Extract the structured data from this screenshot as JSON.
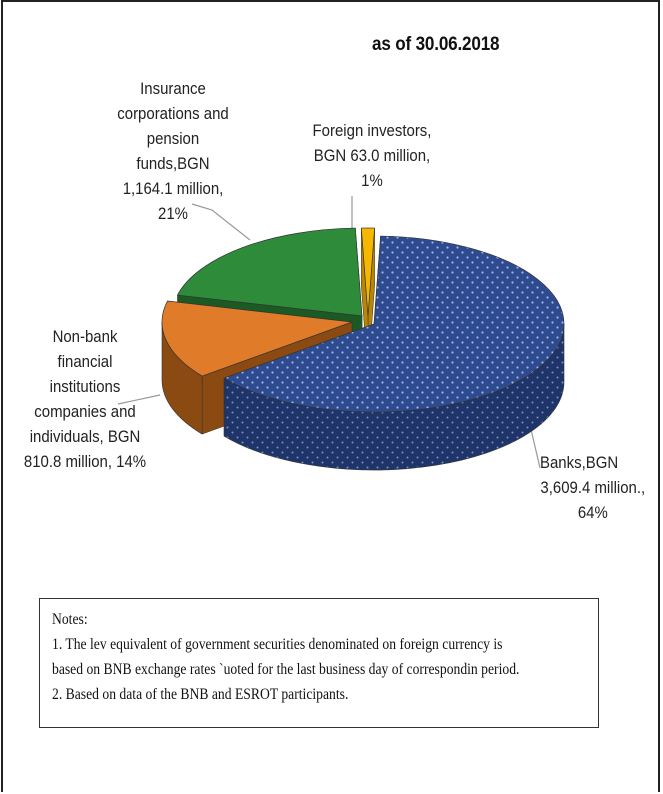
{
  "chart_data": {
    "type": "pie",
    "title": "as of 30.06.2018",
    "slices": [
      {
        "label": "Banks,BGN 3,609.4 million., 64%",
        "value": 3609.4,
        "percent": 64,
        "color": "#2f4b8f"
      },
      {
        "label": "Non-bank financial institutions companies and individuals, BGN 810.8 million, 14%",
        "value": 810.8,
        "percent": 14,
        "color": "#e07b2a"
      },
      {
        "label": "Insurance corporations and pension funds,BGN 1,164.1 million, 21%",
        "value": 1164.1,
        "percent": 21,
        "color": "#2e8b3a"
      },
      {
        "label": "Foreign investors, BGN 63.0 million, 1%",
        "value": 63.0,
        "percent": 1,
        "color": "#f5b700"
      }
    ]
  },
  "labels": {
    "insurance": [
      "Insurance",
      "corporations and",
      "pension",
      "funds,BGN",
      "1,164.1 million,",
      "21%"
    ],
    "foreign": [
      "Foreign investors,",
      "BGN 63.0 million,",
      "1%"
    ],
    "nonbank": [
      "Non-bank",
      "financial",
      "institutions",
      "companies  and",
      "individuals, BGN",
      "810.8 million, 14%"
    ],
    "banks": [
      "Banks,BGN",
      "3,609.4 million.,",
      "64%"
    ]
  },
  "notes": {
    "heading": "Notes:",
    "line1": "1. The lev equivalent of government  securities denominated on foreign currency is",
    "line2": "based on BNB exchange  rates `uoted for the last business day of correspondin period.",
    "line3": "2. Based on data of the BNB and ESROT participants."
  }
}
